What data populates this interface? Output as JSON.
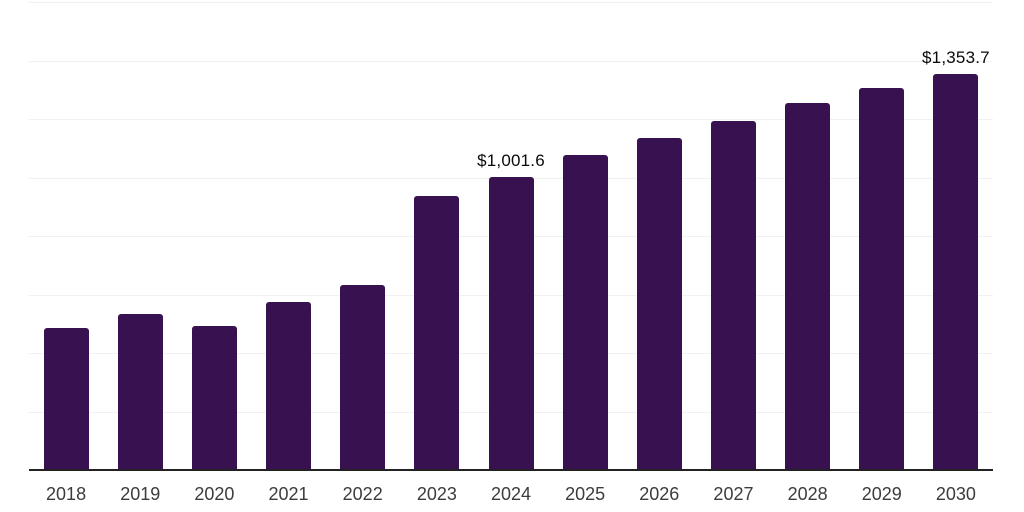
{
  "chart_data": {
    "type": "bar",
    "title": "",
    "xlabel": "",
    "ylabel": "",
    "categories": [
      "2018",
      "2019",
      "2020",
      "2021",
      "2022",
      "2023",
      "2024",
      "2025",
      "2026",
      "2027",
      "2028",
      "2029",
      "2030"
    ],
    "values": [
      484,
      535,
      492,
      575,
      632,
      936,
      1001.6,
      1076,
      1136,
      1193,
      1254,
      1307,
      1353.7
    ],
    "data_labels": [
      {
        "category": "2024",
        "text": "$1,001.6"
      },
      {
        "category": "2030",
        "text": "$1,353.7"
      }
    ],
    "ylim": [
      0,
      1600
    ],
    "gridline_step": 200,
    "grid": "horizontal-only",
    "legend": "none",
    "y_tick_labels_visible": false,
    "bar_color": "#381150",
    "gridline_color": "#f1f1f1",
    "axis_line_color": "#222222",
    "x_tick_label_color": "#3c3c3c",
    "data_label_color": "#0a0a0a"
  }
}
